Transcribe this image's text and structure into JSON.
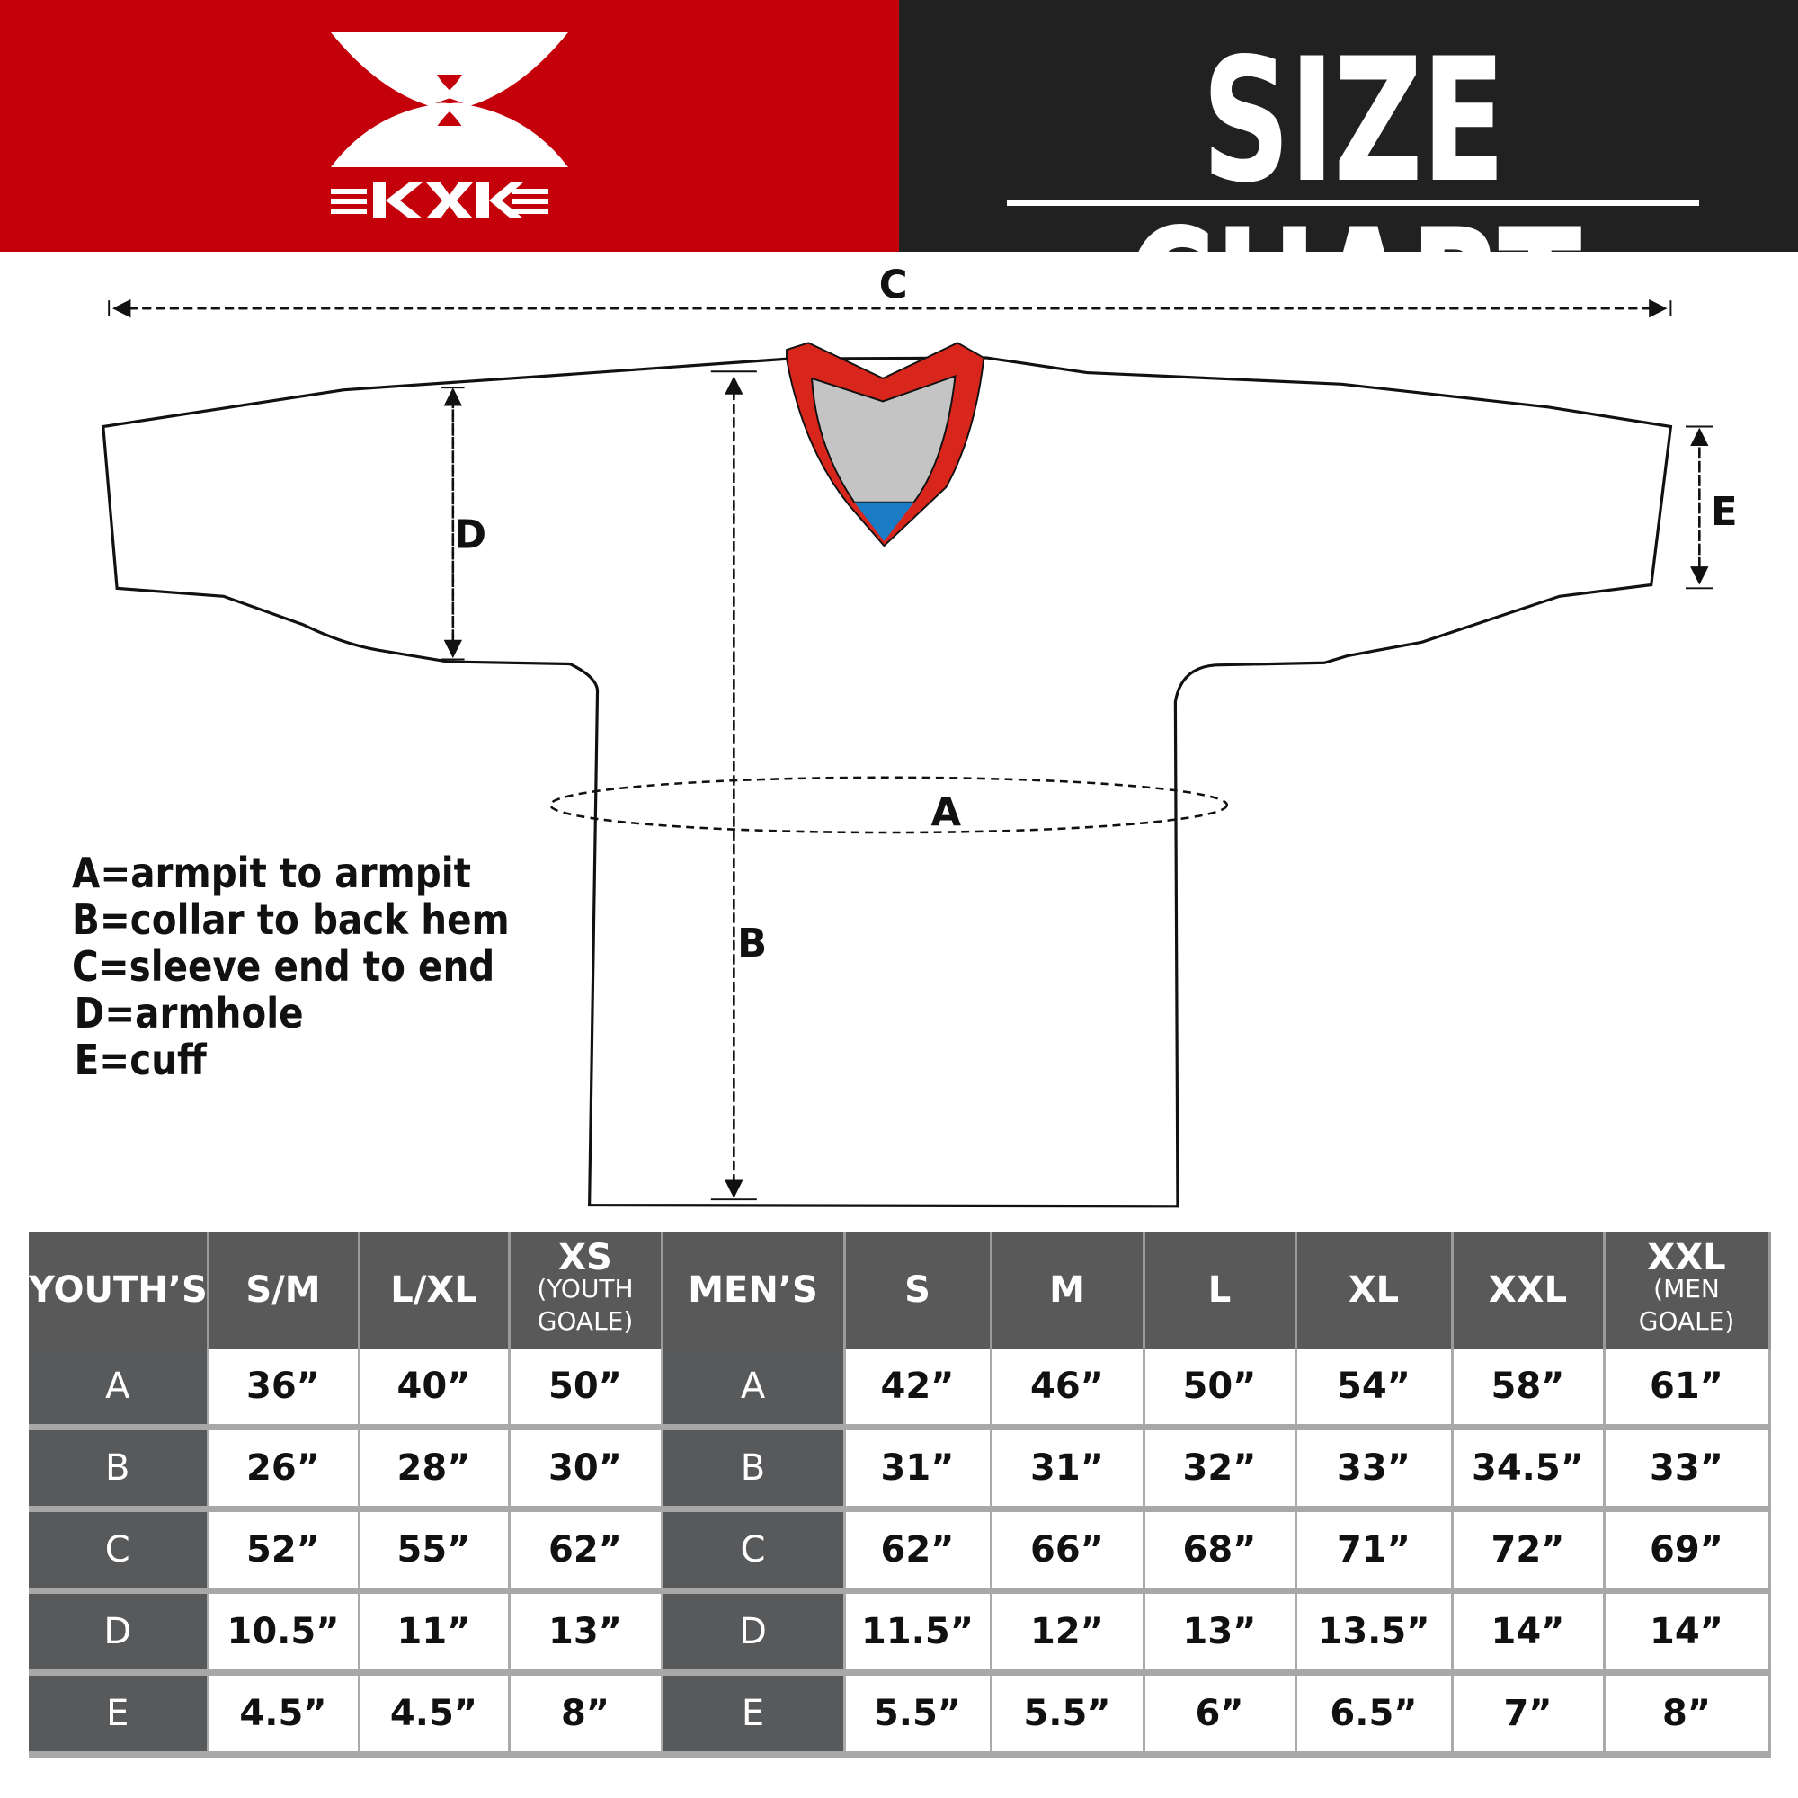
{
  "brand": {
    "logo_text": "KXK",
    "red": "#c4000a",
    "dark": "#212121"
  },
  "header": {
    "title": "SIZE CHART"
  },
  "diagram": {
    "labels": {
      "a": "A",
      "b": "B",
      "c": "C",
      "d": "D",
      "e": "E"
    },
    "collar_colors": {
      "trim": "#d8261c",
      "inner": "#c4c4c4",
      "tip": "#1a7cc4"
    }
  },
  "legend": [
    "A=armpit to armpit",
    "B=collar to back hem",
    "C=sleeve end to end",
    "D=armhole",
    "E=cuff"
  ],
  "table": {
    "headers": [
      {
        "main": "YOUTH’S"
      },
      {
        "main": "S/M"
      },
      {
        "main": "L/XL"
      },
      {
        "main": "XS",
        "sub1": "(YOUTH",
        "sub2": "GOALE)"
      },
      {
        "main": "MEN’S"
      },
      {
        "main": "S"
      },
      {
        "main": "M"
      },
      {
        "main": "L"
      },
      {
        "main": "XL"
      },
      {
        "main": "XXL"
      },
      {
        "main": "XXL",
        "sub1": "(MEN",
        "sub2": "GOALE)"
      }
    ],
    "rows": [
      [
        "A",
        "36”",
        "40”",
        "50”",
        "A",
        "42”",
        "46”",
        "50”",
        "54”",
        "58”",
        "61”"
      ],
      [
        "B",
        "26”",
        "28”",
        "30”",
        "B",
        "31”",
        "31”",
        "32”",
        "33”",
        "34.5”",
        "33”"
      ],
      [
        "C",
        "52”",
        "55”",
        "62”",
        "C",
        "62”",
        "66”",
        "68”",
        "71”",
        "72”",
        "69”"
      ],
      [
        "D",
        "10.5”",
        "11”",
        "13”",
        "D",
        "11.5”",
        "12”",
        "13”",
        "13.5”",
        "14”",
        "14”"
      ],
      [
        "E",
        "4.5”",
        "4.5”",
        "8”",
        "E",
        "5.5”",
        "5.5”",
        "6”",
        "6.5”",
        "7”",
        "8”"
      ]
    ]
  }
}
